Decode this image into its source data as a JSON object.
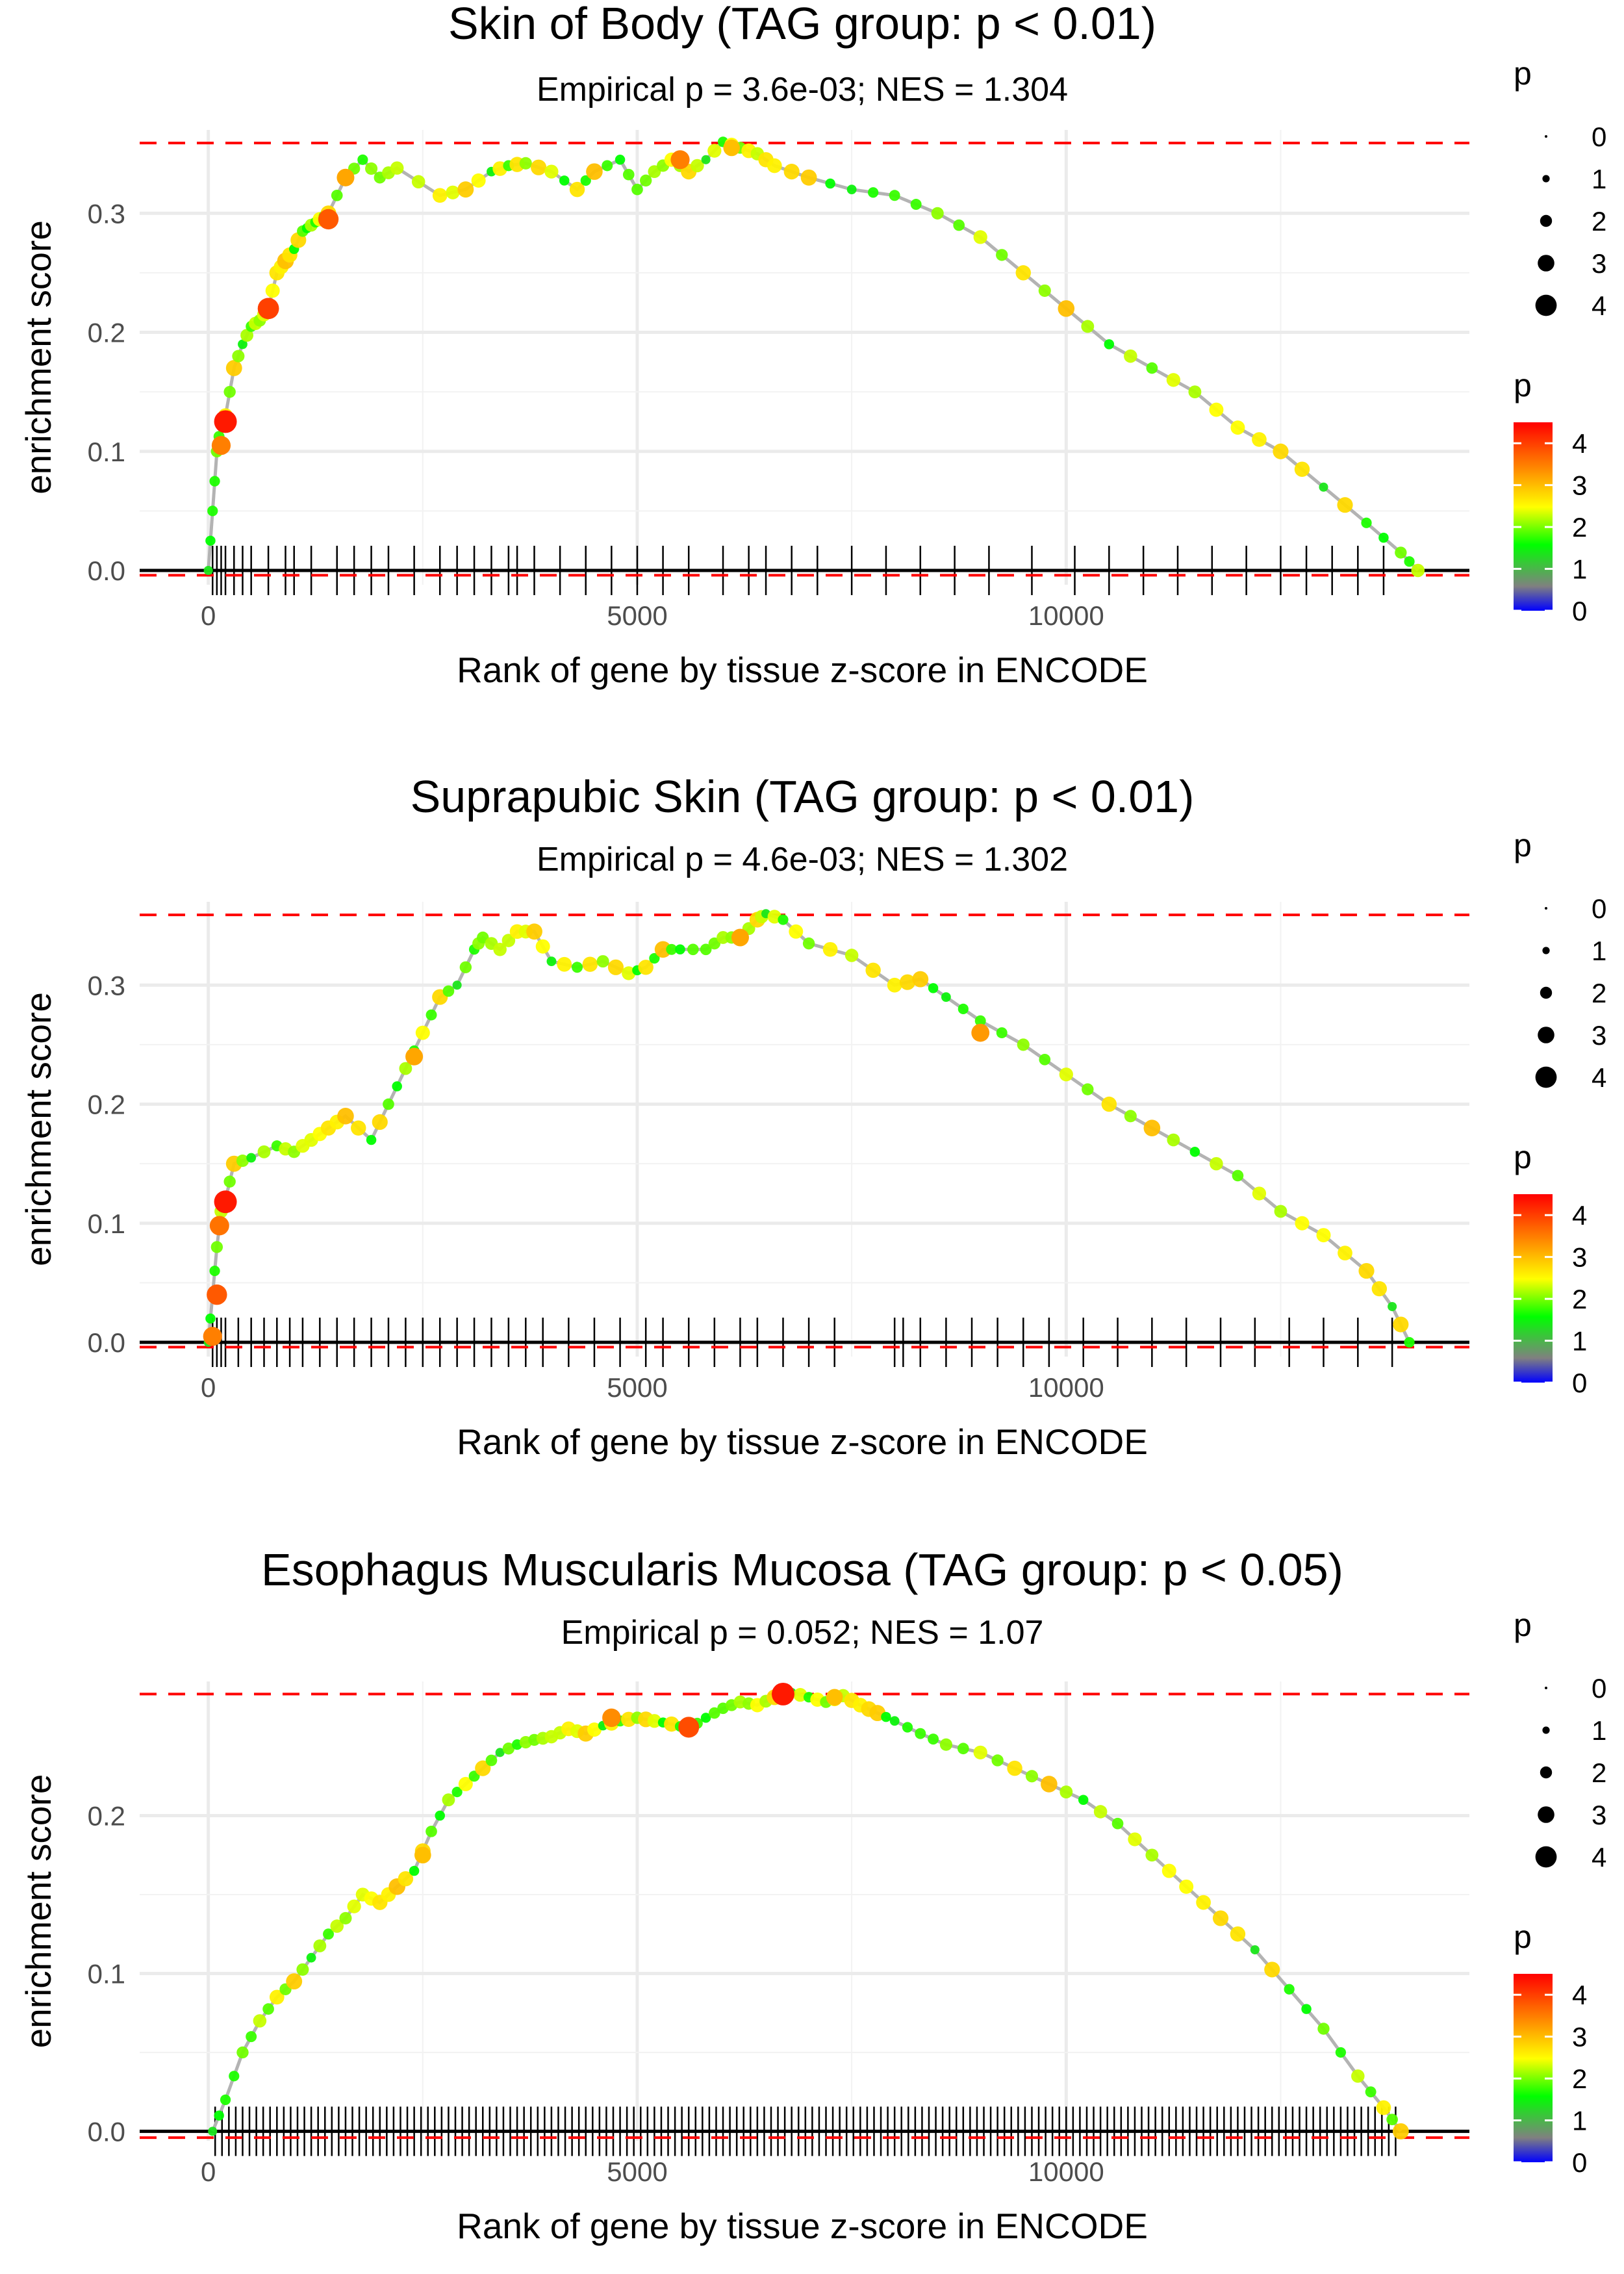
{
  "chart_data": [
    {
      "type": "line",
      "title": "Skin of Body (TAG group: p < 0.01)",
      "subtitle": "Empirical p = 3.6e-03; NES = 1.304",
      "xlabel": "Rank of gene by tissue z-score in ENCODE",
      "ylabel": "enrichment score",
      "xlim": [
        -800,
        14700
      ],
      "ylim": [
        -0.012,
        0.37
      ],
      "xticks": [
        0,
        5000,
        10000
      ],
      "xtick_labels": [
        "0",
        "5000",
        "10000"
      ],
      "yticks": [
        0.0,
        0.1,
        0.2,
        0.3
      ],
      "ytick_labels": [
        "0.0",
        "0.1",
        "0.2",
        "0.3"
      ],
      "hlines": [
        0.359,
        -0.004
      ],
      "series": [
        {
          "name": "running enrichment score",
          "x": [
            0,
            50,
            100,
            150,
            200,
            300,
            400,
            500,
            600,
            700,
            800,
            900,
            1000,
            1100,
            1200,
            1300,
            1400,
            1600,
            1800,
            2000,
            2200,
            2700,
            3000,
            3300,
            3500,
            3700,
            4000,
            4300,
            4500,
            4800,
            5000,
            5200,
            5400,
            5600,
            5800,
            6000,
            6200,
            6400,
            6600,
            7000,
            7500,
            8000,
            8500,
            9000,
            9500,
            10000,
            10500,
            11000,
            11500,
            12000,
            12500,
            13000,
            13500,
            13900,
            14100
          ],
          "y": [
            0.0,
            0.05,
            0.1,
            0.125,
            0.13,
            0.17,
            0.19,
            0.205,
            0.21,
            0.22,
            0.25,
            0.26,
            0.27,
            0.285,
            0.29,
            0.295,
            0.3,
            0.33,
            0.345,
            0.33,
            0.338,
            0.315,
            0.32,
            0.335,
            0.34,
            0.342,
            0.335,
            0.32,
            0.335,
            0.345,
            0.32,
            0.335,
            0.345,
            0.335,
            0.345,
            0.36,
            0.355,
            0.35,
            0.34,
            0.33,
            0.32,
            0.315,
            0.3,
            0.28,
            0.25,
            0.22,
            0.19,
            0.17,
            0.15,
            0.12,
            0.1,
            0.07,
            0.04,
            0.015,
            0.0
          ]
        }
      ],
      "highlight_points": [
        {
          "x": 200,
          "y": 0.125,
          "p": 4.3
        },
        {
          "x": 150,
          "y": 0.105,
          "p": 3.5
        },
        {
          "x": 700,
          "y": 0.22,
          "p": 4.0
        },
        {
          "x": 1400,
          "y": 0.295,
          "p": 3.8
        },
        {
          "x": 1600,
          "y": 0.33,
          "p": 3.2
        },
        {
          "x": 5500,
          "y": 0.345,
          "p": 3.5
        },
        {
          "x": 6100,
          "y": 0.355,
          "p": 3.0
        }
      ],
      "rug_x": [
        50,
        100,
        150,
        200,
        300,
        400,
        500,
        700,
        900,
        1000,
        1200,
        1500,
        1700,
        1900,
        2100,
        2400,
        2700,
        2900,
        3100,
        3300,
        3500,
        3600,
        3800,
        4100,
        4400,
        4700,
        5000,
        5300,
        5600,
        6000,
        6300,
        6500,
        6800,
        7100,
        7500,
        7900,
        8300,
        8700,
        9100,
        9600,
        10100,
        10500,
        10900,
        11300,
        11700,
        12100,
        12500,
        12800,
        13100,
        13400,
        13700
      ],
      "legend_size": {
        "title": "p",
        "labels": [
          "0",
          "1",
          "2",
          "3",
          "4"
        ],
        "values": [
          0,
          1,
          2,
          3,
          4
        ]
      },
      "legend_color": {
        "title": "p",
        "labels": [
          "4",
          "3",
          "2",
          "1",
          "0"
        ],
        "values": [
          4,
          3,
          2,
          1,
          0
        ],
        "colors": [
          "#ff0000",
          "#ff8c00",
          "#ffff00",
          "#00ff00",
          "#808080",
          "#0000ff"
        ]
      }
    },
    {
      "type": "line",
      "title": "Suprapubic Skin (TAG group: p < 0.01)",
      "subtitle": "Empirical p = 4.6e-03; NES = 1.302",
      "xlabel": "Rank of gene by tissue z-score in ENCODE",
      "ylabel": "enrichment score",
      "xlim": [
        -800,
        14700
      ],
      "ylim": [
        -0.012,
        0.37
      ],
      "xticks": [
        0,
        5000,
        10000
      ],
      "xtick_labels": [
        "0",
        "5000",
        "10000"
      ],
      "yticks": [
        0.0,
        0.1,
        0.2,
        0.3
      ],
      "ytick_labels": [
        "0.0",
        "0.1",
        "0.2",
        "0.3"
      ],
      "hlines": [
        0.359,
        -0.004
      ],
      "series": [
        {
          "name": "running enrichment score",
          "x": [
            0,
            50,
            100,
            150,
            200,
            300,
            500,
            800,
            1000,
            1200,
            1400,
            1600,
            1900,
            2100,
            2300,
            2500,
            2700,
            2900,
            3100,
            3200,
            3400,
            3600,
            3800,
            4000,
            4300,
            4600,
            4900,
            5100,
            5300,
            5500,
            5800,
            6000,
            6200,
            6400,
            6500,
            6700,
            7000,
            7500,
            8000,
            8300,
            8600,
            9000,
            9500,
            10000,
            10500,
            11000,
            11500,
            12000,
            12500,
            13000,
            13500,
            13800,
            14000
          ],
          "y": [
            0.0,
            0.04,
            0.08,
            0.11,
            0.12,
            0.15,
            0.155,
            0.165,
            0.16,
            0.17,
            0.18,
            0.19,
            0.17,
            0.2,
            0.23,
            0.26,
            0.29,
            0.3,
            0.33,
            0.34,
            0.33,
            0.345,
            0.345,
            0.32,
            0.315,
            0.32,
            0.31,
            0.315,
            0.33,
            0.33,
            0.33,
            0.34,
            0.34,
            0.355,
            0.36,
            0.355,
            0.335,
            0.325,
            0.3,
            0.305,
            0.29,
            0.27,
            0.25,
            0.225,
            0.2,
            0.18,
            0.16,
            0.14,
            0.11,
            0.09,
            0.06,
            0.03,
            0.0
          ]
        }
      ],
      "highlight_points": [
        {
          "x": 200,
          "y": 0.118,
          "p": 4.3
        },
        {
          "x": 130,
          "y": 0.098,
          "p": 3.6
        },
        {
          "x": 100,
          "y": 0.04,
          "p": 3.8
        },
        {
          "x": 50,
          "y": 0.005,
          "p": 3.5
        },
        {
          "x": 2400,
          "y": 0.24,
          "p": 3.2
        },
        {
          "x": 6200,
          "y": 0.34,
          "p": 3.2
        },
        {
          "x": 9000,
          "y": 0.26,
          "p": 3.3
        }
      ],
      "rug_x": [
        50,
        100,
        150,
        200,
        350,
        500,
        650,
        800,
        950,
        1100,
        1300,
        1500,
        1700,
        1900,
        2100,
        2300,
        2500,
        2700,
        2900,
        3100,
        3300,
        3500,
        3700,
        3900,
        4200,
        4500,
        4800,
        5100,
        5300,
        5600,
        5900,
        6200,
        6400,
        6700,
        7000,
        7300,
        8000,
        8100,
        8300,
        8600,
        8900,
        9200,
        9500,
        9800,
        10200,
        10600,
        11000,
        11400,
        11800,
        12200,
        12600,
        13000,
        13400,
        13800
      ],
      "legend_size": {
        "title": "p",
        "labels": [
          "0",
          "1",
          "2",
          "3",
          "4"
        ],
        "values": [
          0,
          1,
          2,
          3,
          4
        ]
      },
      "legend_color": {
        "title": "p",
        "labels": [
          "4",
          "3",
          "2",
          "1",
          "0"
        ],
        "values": [
          4,
          3,
          2,
          1,
          0
        ],
        "colors": [
          "#ff0000",
          "#ff8c00",
          "#ffff00",
          "#00ff00",
          "#808080",
          "#0000ff"
        ]
      }
    },
    {
      "type": "line",
      "title": "Esophagus Muscularis Mucosa (TAG group: p < 0.05)",
      "subtitle": "Empirical p = 0.052; NES = 1.07",
      "xlabel": "Rank of gene by tissue z-score in ENCODE",
      "ylabel": "enrichment score",
      "xlim": [
        -800,
        14700
      ],
      "ylim": [
        -0.006,
        0.285
      ],
      "xticks": [
        0,
        5000,
        10000
      ],
      "xtick_labels": [
        "0",
        "5000",
        "10000"
      ],
      "yticks": [
        0.0,
        0.1,
        0.2
      ],
      "ytick_labels": [
        "0.0",
        "0.1",
        "0.2"
      ],
      "hlines": [
        0.277,
        -0.004
      ],
      "series": [
        {
          "name": "running enrichment score",
          "x": [
            50,
            200,
            400,
            600,
            800,
            1000,
            1200,
            1400,
            1600,
            1800,
            2000,
            2200,
            2400,
            2600,
            2800,
            3000,
            3200,
            3400,
            3600,
            3800,
            4000,
            4200,
            4400,
            4600,
            4800,
            5000,
            5200,
            5400,
            5600,
            5800,
            6000,
            6200,
            6400,
            6600,
            6800,
            7000,
            7200,
            7400,
            7600,
            7800,
            8000,
            8300,
            8600,
            9000,
            9400,
            9800,
            10200,
            10600,
            11000,
            11400,
            11800,
            12200,
            12600,
            13000,
            13400,
            13700,
            13900
          ],
          "y": [
            0.0,
            0.02,
            0.05,
            0.07,
            0.085,
            0.095,
            0.11,
            0.125,
            0.135,
            0.15,
            0.145,
            0.155,
            0.165,
            0.19,
            0.21,
            0.22,
            0.23,
            0.24,
            0.245,
            0.248,
            0.25,
            0.255,
            0.252,
            0.257,
            0.26,
            0.262,
            0.26,
            0.258,
            0.255,
            0.262,
            0.268,
            0.272,
            0.27,
            0.275,
            0.278,
            0.275,
            0.272,
            0.276,
            0.27,
            0.265,
            0.26,
            0.252,
            0.245,
            0.24,
            0.23,
            0.22,
            0.21,
            0.195,
            0.175,
            0.155,
            0.135,
            0.115,
            0.09,
            0.065,
            0.035,
            0.015,
            0.0
          ]
        }
      ],
      "highlight_points": [
        {
          "x": 6700,
          "y": 0.277,
          "p": 4.3
        },
        {
          "x": 5600,
          "y": 0.256,
          "p": 3.9
        },
        {
          "x": 4700,
          "y": 0.262,
          "p": 3.4
        },
        {
          "x": 7300,
          "y": 0.275,
          "p": 3.0
        },
        {
          "x": 2500,
          "y": 0.175,
          "p": 3.0
        }
      ],
      "rug_x": [
        80,
        160,
        240,
        320,
        400,
        480,
        560,
        640,
        720,
        800,
        880,
        960,
        1040,
        1120,
        1200,
        1280,
        1360,
        1440,
        1520,
        1600,
        1680,
        1760,
        1840,
        1920,
        2000,
        2080,
        2160,
        2240,
        2320,
        2400,
        2480,
        2560,
        2640,
        2720,
        2800,
        2880,
        2960,
        3040,
        3120,
        3200,
        3280,
        3360,
        3440,
        3520,
        3600,
        3680,
        3760,
        3840,
        3920,
        4000,
        4080,
        4160,
        4240,
        4320,
        4400,
        4480,
        4560,
        4640,
        4720,
        4800,
        4880,
        4960,
        5040,
        5120,
        5200,
        5280,
        5360,
        5440,
        5520,
        5600,
        5680,
        5760,
        5840,
        5920,
        6000,
        6080,
        6160,
        6240,
        6320,
        6400,
        6480,
        6560,
        6640,
        6720,
        6800,
        6880,
        6960,
        7040,
        7120,
        7200,
        7280,
        7360,
        7440,
        7520,
        7600,
        7680,
        7760,
        7840,
        7920,
        8000,
        8080,
        8160,
        8240,
        8320,
        8400,
        8480,
        8560,
        8640,
        8720,
        8800,
        8880,
        8960,
        9040,
        9120,
        9200,
        9280,
        9360,
        9440,
        9520,
        9600,
        9680,
        9760,
        9840,
        9920,
        10000,
        10080,
        10160,
        10240,
        10320,
        10400,
        10480,
        10560,
        10640,
        10720,
        10800,
        10880,
        10960,
        11040,
        11120,
        11200,
        11280,
        11360,
        11440,
        11520,
        11600,
        11680,
        11760,
        11840,
        11920,
        12000,
        12080,
        12160,
        12240,
        12320,
        12400,
        12480,
        12560,
        12640,
        12720,
        12800,
        12880,
        12960,
        13040,
        13120,
        13200,
        13280,
        13360,
        13440,
        13520,
        13600,
        13680,
        13760,
        13840
      ],
      "legend_size": {
        "title": "p",
        "labels": [
          "0",
          "1",
          "2",
          "3",
          "4"
        ],
        "values": [
          0,
          1,
          2,
          3,
          4
        ]
      },
      "legend_color": {
        "title": "p",
        "labels": [
          "4",
          "3",
          "2",
          "1",
          "0"
        ],
        "values": [
          4,
          3,
          2,
          1,
          0
        ],
        "colors": [
          "#ff0000",
          "#ff8c00",
          "#ffff00",
          "#00ff00",
          "#808080",
          "#0000ff"
        ]
      }
    }
  ]
}
